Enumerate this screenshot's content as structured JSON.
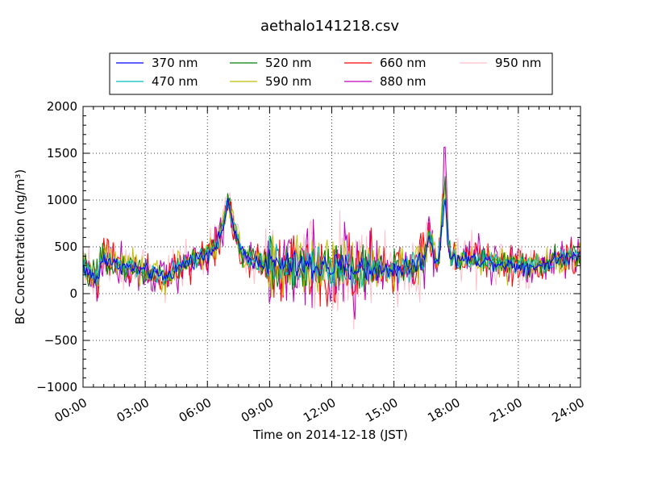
{
  "chart_data": {
    "type": "line",
    "title": "aethalo141218.csv",
    "xlabel": "Time on 2014-12-18 (JST)",
    "ylabel": "BC Concentration (ng/m³)",
    "xlim": [
      "00:00",
      "24:00"
    ],
    "ylim": [
      -1000,
      2000
    ],
    "x_ticks": [
      "00:00",
      "03:00",
      "06:00",
      "09:00",
      "12:00",
      "15:00",
      "18:00",
      "21:00",
      "24:00"
    ],
    "y_ticks": [
      2000,
      1500,
      1000,
      500,
      0,
      -500,
      -1000
    ],
    "grid": true,
    "legend_position": "top",
    "series": [
      {
        "name": "370 nm",
        "color": "#0000ff"
      },
      {
        "name": "470 nm",
        "color": "#00bfbf"
      },
      {
        "name": "520 nm",
        "color": "#008000"
      },
      {
        "name": "590 nm",
        "color": "#bfbf00"
      },
      {
        "name": "660 nm",
        "color": "#ff0000"
      },
      {
        "name": "880 nm",
        "color": "#bf00bf"
      },
      {
        "name": "950 nm",
        "color": "#ffc0cb"
      }
    ],
    "base_profile": {
      "x_hours": [
        0,
        0.3,
        0.7,
        1.0,
        1.5,
        2.0,
        2.5,
        3.0,
        3.5,
        4.0,
        4.5,
        5.0,
        5.5,
        6.0,
        6.5,
        6.8,
        7.0,
        7.3,
        7.6,
        8.0,
        9.0,
        10.0,
        11.0,
        12.0,
        13.0,
        14.0,
        14.5,
        15.0,
        15.5,
        16.0,
        16.5,
        16.7,
        16.9,
        17.1,
        17.3,
        17.45,
        17.6,
        17.8,
        18.0,
        18.5,
        19.0,
        19.5,
        20.0,
        20.5,
        21.0,
        21.5,
        22.0,
        22.5,
        23.0,
        23.5,
        24.0
      ],
      "y_values": [
        300,
        200,
        150,
        400,
        320,
        290,
        270,
        240,
        200,
        180,
        260,
        330,
        380,
        420,
        550,
        750,
        950,
        700,
        450,
        360,
        320,
        300,
        290,
        280,
        270,
        260,
        230,
        260,
        280,
        300,
        400,
        650,
        420,
        330,
        600,
        1050,
        520,
        380,
        360,
        380,
        360,
        350,
        330,
        310,
        300,
        290,
        300,
        340,
        370,
        390,
        420
      ]
    }
  }
}
